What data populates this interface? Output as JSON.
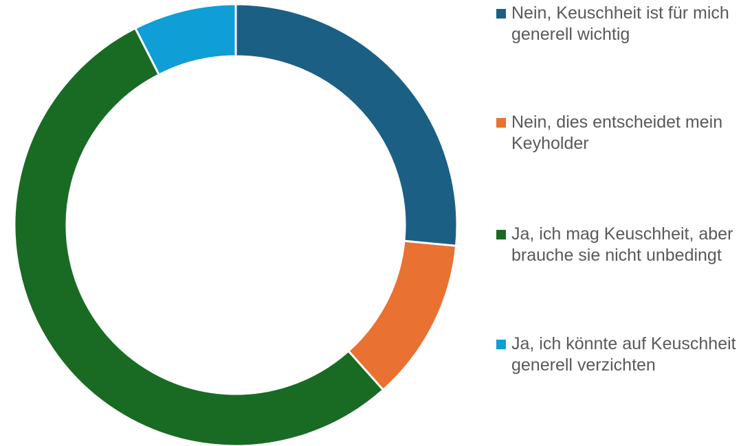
{
  "chart_data": {
    "type": "donut",
    "categories": [
      "Nein, Keuschheit ist für mich generell wichtig",
      "Nein, dies entscheidet mein Keyholder",
      "Ja, ich mag Keuschheit, aber brauche sie nicht unbedingt",
      "Ja, ich könnte auf Keuschheit generell verzichten"
    ],
    "values": [
      26.5,
      11.9,
      54.1,
      7.5
    ],
    "colors": [
      "#1b6084",
      "#e97132",
      "#196b24",
      "#0f9ed5"
    ],
    "legend": "right"
  }
}
